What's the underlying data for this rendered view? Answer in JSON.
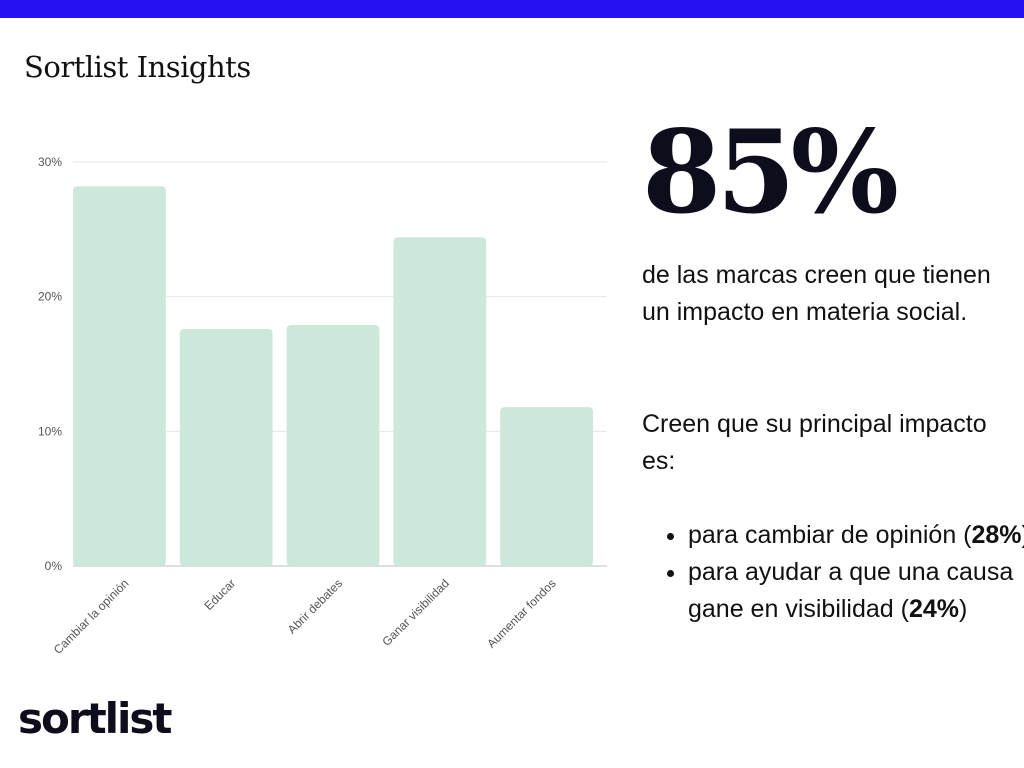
{
  "colors": {
    "accent_bar": "#2511f2",
    "bar_fill": "#cce8da",
    "grid": "#e6e6e6",
    "axis": "#bdbdbd"
  },
  "header": {
    "title": "Sortlist Insights"
  },
  "chart_data": {
    "type": "bar",
    "categories": [
      "Cambiar la opinión",
      "Educar",
      "Abrir debates",
      "Ganar visibilidad",
      "Aumentar fondos"
    ],
    "values": [
      28.2,
      17.6,
      17.9,
      24.4,
      11.8
    ],
    "yticks": [
      "0%",
      "10%",
      "20%",
      "30%"
    ],
    "ytick_values": [
      0,
      10,
      20,
      30
    ],
    "ylim": [
      0,
      30
    ],
    "grid": true,
    "legend": "none",
    "title": "",
    "xlabel": "",
    "ylabel": ""
  },
  "stat": {
    "value": "85%",
    "description": "de las marcas creen que tienen un impacto en materia social.",
    "lead": "Creen que su principal impacto es:",
    "bullets": [
      {
        "text": "para cambiar de opinión (",
        "value": "28%",
        "suffix": ")"
      },
      {
        "text": "para ayudar a que una causa gane en visibilidad (",
        "value": "24%",
        "suffix": ")"
      }
    ]
  },
  "footer": {
    "logo": "sortlist"
  }
}
